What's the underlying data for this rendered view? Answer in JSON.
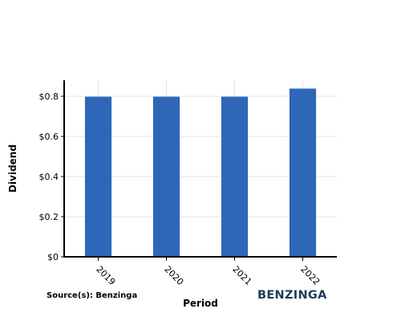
{
  "chart_data": {
    "type": "bar",
    "categories": [
      "2019",
      "2020",
      "2021",
      "2022"
    ],
    "values": [
      0.8,
      0.8,
      0.8,
      0.84
    ],
    "xlabel": "Period",
    "ylabel": "Dividend",
    "ylim": [
      0,
      0.88
    ],
    "yticks": [
      0,
      0.2,
      0.4,
      0.6,
      0.8
    ],
    "ytick_labels": [
      "$0",
      "$0.2",
      "$0.4",
      "$0.6",
      "$0.8"
    ],
    "bar_color": "#2e67b8",
    "grid": true,
    "legend": "none"
  },
  "footer": {
    "source": "Source(s): Benzinga",
    "logo_text": "BENZINGA"
  }
}
